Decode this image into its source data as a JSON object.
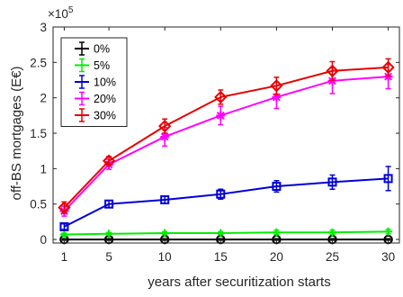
{
  "chart_data": {
    "type": "line",
    "title": "",
    "xlabel": "years after securitization starts",
    "ylabel": "off-BS mortgages (E€)",
    "y_exponent_label": "×10",
    "y_exponent_power": "5",
    "x": [
      1,
      5,
      10,
      15,
      20,
      25,
      30
    ],
    "xticks": [
      1,
      5,
      10,
      15,
      20,
      25,
      30
    ],
    "xtick_labels": [
      "1",
      "5",
      "10",
      "15",
      "20",
      "25",
      "30"
    ],
    "xlim": [
      0,
      31
    ],
    "yticks": [
      0,
      0.5,
      1,
      1.5,
      2,
      2.5,
      3
    ],
    "ytick_labels": [
      "0",
      "0.5",
      "1",
      "1.5",
      "2",
      "2.5",
      "3"
    ],
    "ylim": [
      -0.05,
      3
    ],
    "grid": false,
    "legend_position": "top-left",
    "series": [
      {
        "name": "0%",
        "color": "#000000",
        "marker": "circle",
        "values": [
          0,
          0,
          0,
          0,
          0,
          0,
          0
        ],
        "errors": [
          0.01,
          0.01,
          0.01,
          0.01,
          0.01,
          0.01,
          0.01
        ]
      },
      {
        "name": "5%",
        "color": "#00ee00",
        "marker": "plus",
        "values": [
          0.07,
          0.08,
          0.09,
          0.09,
          0.1,
          0.1,
          0.11
        ],
        "errors": [
          0.02,
          0.02,
          0.02,
          0.02,
          0.03,
          0.03,
          0.03
        ]
      },
      {
        "name": "10%",
        "color": "#0000d8",
        "marker": "square",
        "values": [
          0.18,
          0.5,
          0.56,
          0.64,
          0.75,
          0.81,
          0.86
        ],
        "errors": [
          0.04,
          0.05,
          0.05,
          0.07,
          0.08,
          0.1,
          0.17
        ]
      },
      {
        "name": "20%",
        "color": "#ff00ff",
        "marker": "star",
        "values": [
          0.4,
          1.06,
          1.45,
          1.75,
          2.01,
          2.24,
          2.3
        ],
        "errors": [
          0.07,
          0.07,
          0.13,
          0.13,
          0.16,
          0.18,
          0.17
        ]
      },
      {
        "name": "30%",
        "color": "#e60000",
        "marker": "diamond",
        "values": [
          0.45,
          1.11,
          1.6,
          2.01,
          2.17,
          2.38,
          2.43
        ],
        "errors": [
          0.08,
          0.06,
          0.1,
          0.1,
          0.12,
          0.13,
          0.12
        ]
      }
    ]
  }
}
